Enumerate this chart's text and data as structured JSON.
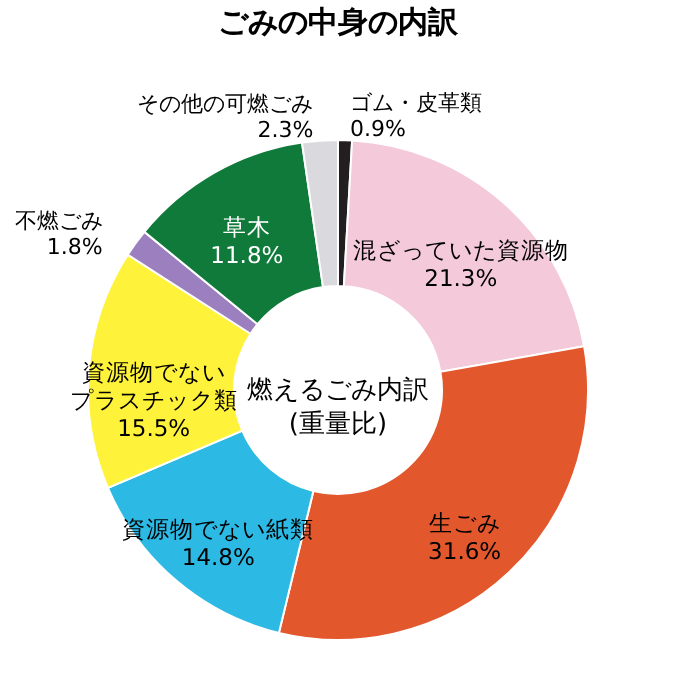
{
  "chart_data": {
    "type": "donut",
    "title": "ごみの中身の内訳",
    "categories": [
      "ゴム・皮革類",
      "混ざっていた資源物",
      "生ごみ",
      "資源物でない紙類",
      "資源物でないプラスチック類",
      "不燃ごみ",
      "草木",
      "その他の可燃ごみ"
    ],
    "values": [
      0.9,
      21.3,
      31.6,
      14.8,
      15.5,
      1.8,
      11.8,
      2.3
    ],
    "value_labels": [
      "0.9%",
      "21.3%",
      "31.6%",
      "14.8%",
      "15.5%",
      "1.8%",
      "11.8%",
      "2.3%"
    ],
    "colors": [
      "#231f20",
      "#f4c9d9",
      "#e2572c",
      "#2cb9e4",
      "#fff23a",
      "#9b7fbf",
      "#0f7a3a",
      "#d9d9de"
    ],
    "annotations": [
      "燃えるごみ内訳\n(重量比)"
    ]
  }
}
